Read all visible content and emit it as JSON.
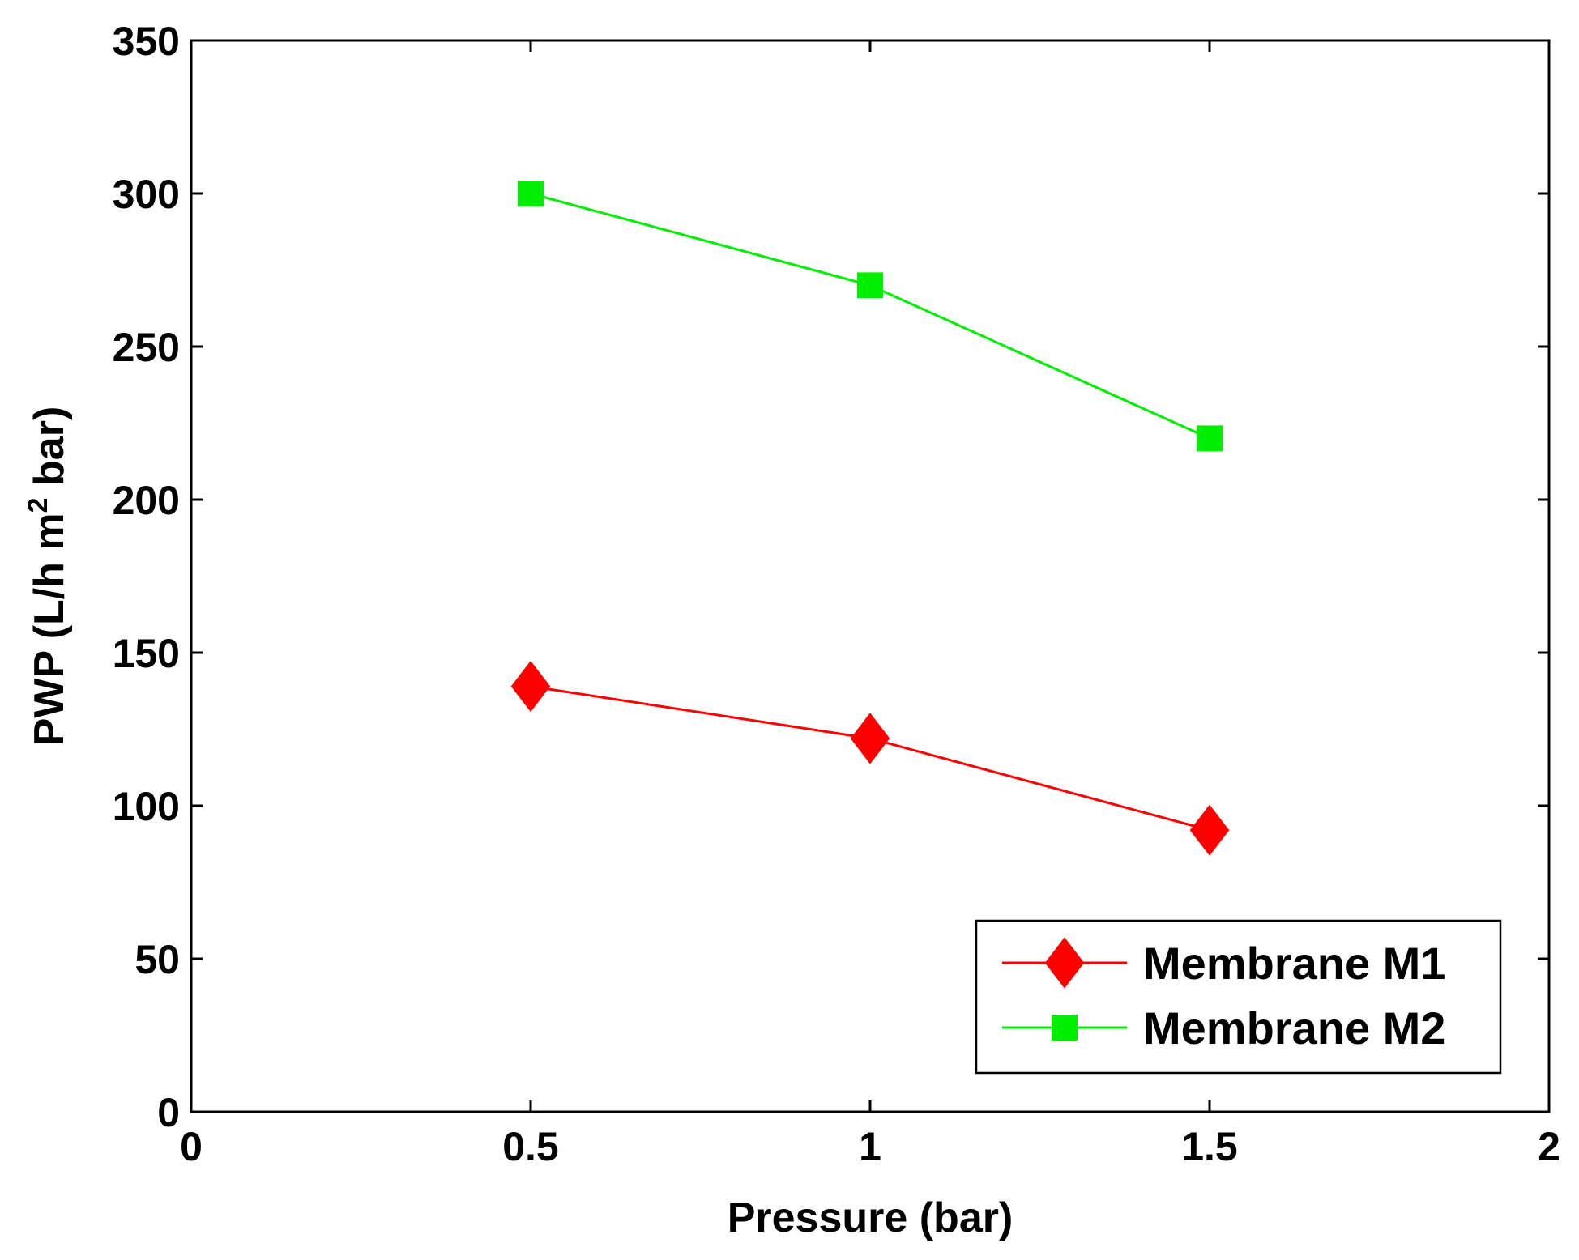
{
  "chart_data": {
    "type": "line",
    "title": "",
    "xlabel": "Pressure (bar)",
    "ylabel": {
      "prefix": "PWP (L/h m",
      "superscript": "2",
      "suffix": " bar)"
    },
    "xlim": [
      0,
      2
    ],
    "ylim": [
      0,
      350
    ],
    "xticks": [
      0,
      0.5,
      1,
      1.5,
      2
    ],
    "xtick_labels": [
      "0",
      "0.5",
      "1",
      "1.5",
      "2"
    ],
    "yticks": [
      0,
      50,
      100,
      150,
      200,
      250,
      300,
      350
    ],
    "ytick_labels": [
      "0",
      "50",
      "100",
      "150",
      "200",
      "250",
      "300",
      "350"
    ],
    "grid": false,
    "legend_position": "bottom-right",
    "series": [
      {
        "name": "Membrane M1",
        "marker": "diamond",
        "color": "#ff0000",
        "x": [
          0.5,
          1,
          1.5
        ],
        "y": [
          139,
          122,
          92
        ]
      },
      {
        "name": "Membrane M2",
        "marker": "square",
        "color": "#00ee00",
        "x": [
          0.5,
          1,
          1.5
        ],
        "y": [
          300,
          270,
          220
        ]
      }
    ]
  }
}
